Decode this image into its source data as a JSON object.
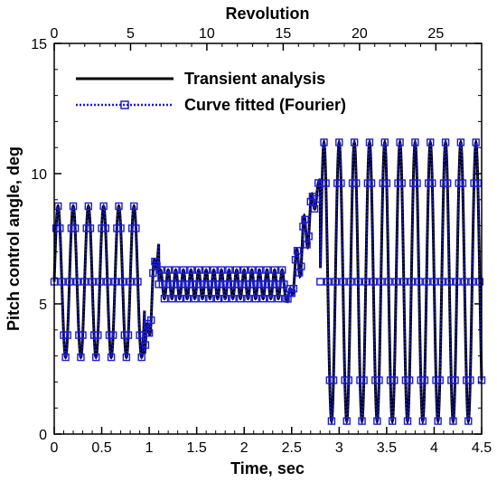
{
  "chart_data": {
    "type": "line",
    "title": "",
    "xlabel": "Time, sec",
    "ylabel": "Pitch control angle, deg",
    "x2label": "Revolution",
    "xlim": [
      0,
      4.5
    ],
    "ylim": [
      0,
      15
    ],
    "x2lim": [
      0,
      28
    ],
    "xticks": [
      "0",
      "0.5",
      "1",
      "1.5",
      "2",
      "2.5",
      "3",
      "3.5",
      "4",
      "4.5"
    ],
    "yticks": [
      "0",
      "5",
      "10",
      "15"
    ],
    "x2ticks": [
      "0",
      "5",
      "10",
      "15",
      "20",
      "25"
    ],
    "grid": false,
    "legend_position": "top-left",
    "colors": {
      "transient": "#000000",
      "fitted": "#1a1adc"
    },
    "series": [
      {
        "name": "Transient analysis",
        "style": "solid",
        "segments": [
          {
            "t_start": 0.0,
            "t_end": 0.95,
            "period": 0.16,
            "center": 5.85,
            "amplitude": 2.9,
            "phase": 0.0
          },
          {
            "t_start": 0.95,
            "t_end": 1.1,
            "type": "transition",
            "from": 3.0,
            "to": 7.3
          },
          {
            "t_start": 1.1,
            "t_end": 2.45,
            "period": 0.08,
            "center": 5.75,
            "amplitude": 0.55,
            "phase": 0.0
          },
          {
            "t_start": 2.45,
            "t_end": 2.8,
            "type": "transition",
            "from": 5.0,
            "to": 9.8
          },
          {
            "t_start": 2.8,
            "t_end": 4.5,
            "period": 0.16,
            "center": 5.85,
            "amplitude": 5.35,
            "phase": 0.0
          }
        ]
      },
      {
        "name": "Curve fitted (Fourier)",
        "style": "dotted-square-markers",
        "marker_spacing_sec": 0.02,
        "segments": "same as Transient analysis"
      }
    ]
  }
}
